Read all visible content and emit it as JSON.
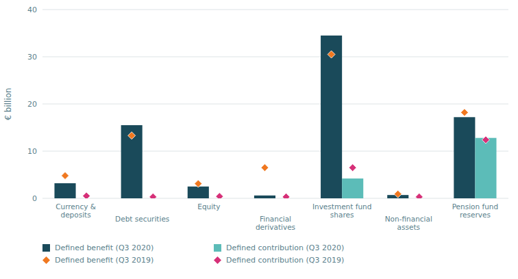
{
  "chart_data": {
    "type": "bar",
    "y_label": "€ billion",
    "categories": [
      "Currency &\ndeposits",
      "Debt securities",
      "Equity",
      "Financial\nderivatives",
      "Investment fund\nshares",
      "Non-financial\nassets",
      "Pension fund\nreserves"
    ],
    "series": [
      {
        "name": "Defined benefit (Q3 2020)",
        "type": "bar",
        "color": "#1a4a5a",
        "values": [
          3.2,
          15.5,
          2.5,
          0.6,
          34.5,
          0.7,
          17.2
        ]
      },
      {
        "name": "Defined contribution (Q3 2020)",
        "type": "bar",
        "color": "#5cbcb8",
        "values": [
          0.0,
          0.0,
          0.0,
          0.0,
          4.2,
          0.0,
          12.8
        ]
      },
      {
        "name": "Defined benefit (Q3 2019)",
        "type": "scatter",
        "marker": "diamond",
        "color": "#f07820",
        "values": [
          4.8,
          13.3,
          3.1,
          6.5,
          30.5,
          0.9,
          18.2
        ]
      },
      {
        "name": "Defined contribution (Q3 2019)",
        "type": "scatter",
        "marker": "diamond",
        "color": "#d63078",
        "values": [
          0.5,
          0.3,
          0.4,
          0.3,
          6.5,
          0.3,
          12.4
        ]
      }
    ],
    "ylim": [
      0,
      40
    ],
    "yticks": [
      0,
      10,
      20,
      30,
      40
    ],
    "grid": true,
    "legend": "bottom"
  }
}
